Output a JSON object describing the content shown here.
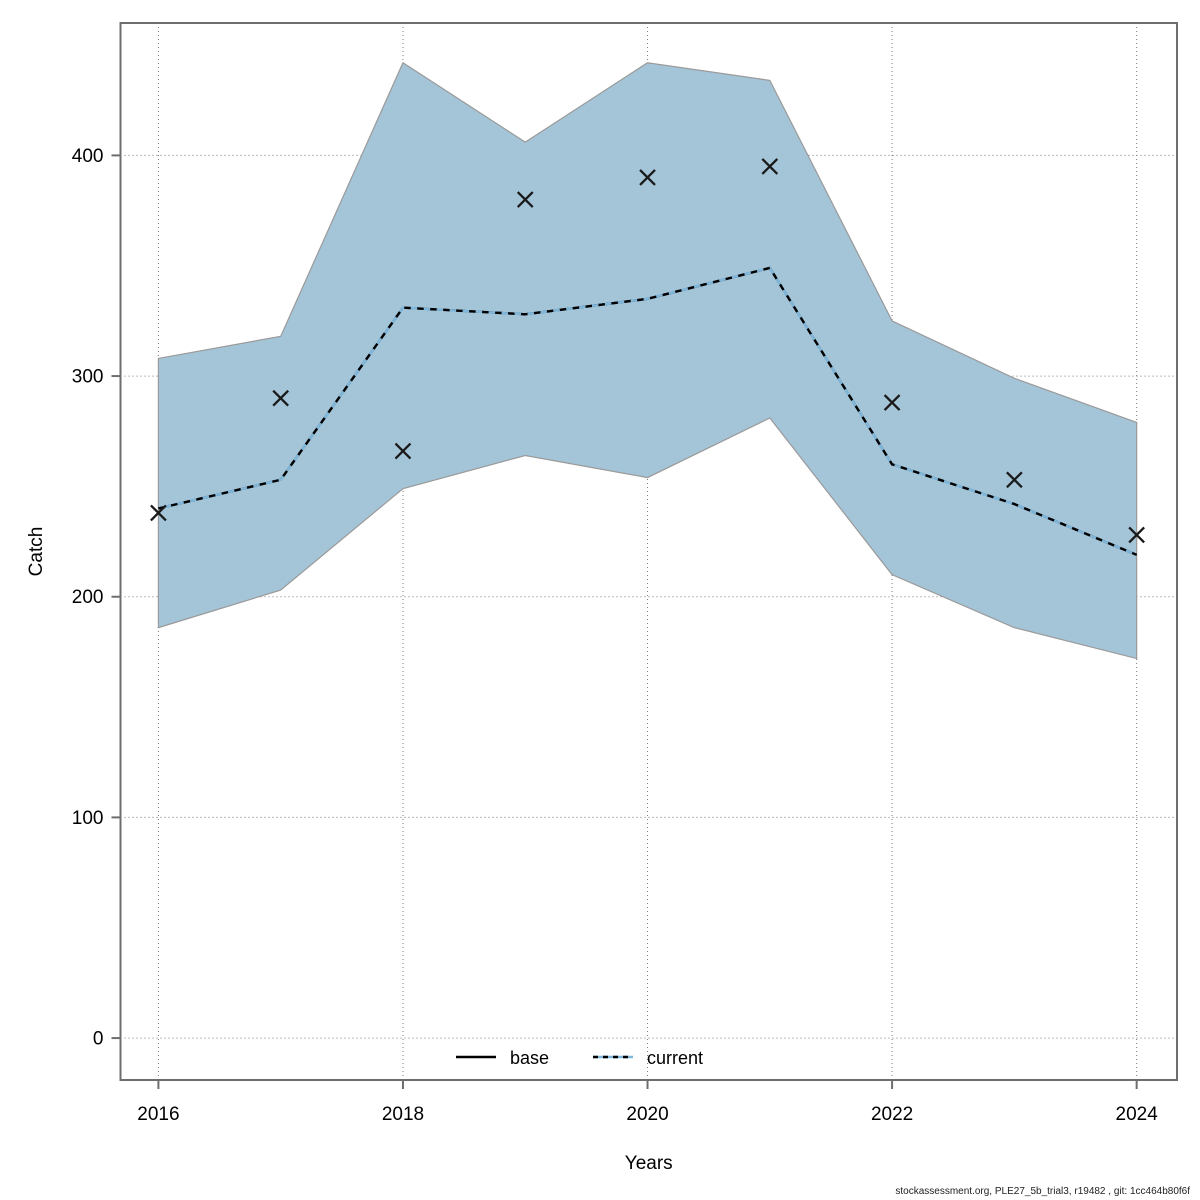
{
  "chart_data": {
    "type": "line",
    "title": "",
    "xlabel": "Years",
    "ylabel": "Catch",
    "x": [
      2016,
      2017,
      2018,
      2019,
      2020,
      2021,
      2022,
      2023,
      2024
    ],
    "xticks": [
      2016,
      2018,
      2020,
      2022,
      2024
    ],
    "yticks": [
      0,
      100,
      200,
      300,
      400
    ],
    "xlim": [
      2015.69,
      2024.33
    ],
    "ylim": [
      -19,
      460
    ],
    "grid": "dotted",
    "grid_color": "#7a7a7a",
    "axis_color": "#6e6e6e",
    "text_color": "#000000",
    "band": {
      "name": "confidence-band",
      "fill": "#a4c4d8",
      "edge": "#9a9a9a",
      "upper": [
        308,
        318,
        442,
        406,
        442,
        434,
        325,
        299,
        279
      ],
      "lower": [
        186,
        203,
        249,
        264,
        254,
        281,
        210,
        186,
        172
      ]
    },
    "series": [
      {
        "name": "base",
        "style": "solid",
        "color": "#000000",
        "values": [
          240,
          253,
          331,
          328,
          335,
          349,
          260,
          242,
          219
        ]
      },
      {
        "name": "current",
        "style": "dashed",
        "color": "#7fb8dc",
        "values": [
          240,
          253,
          331,
          328,
          335,
          349,
          260,
          242,
          219
        ]
      }
    ],
    "points": {
      "name": "observations",
      "marker": "x",
      "color": "#1a1a1a",
      "values": [
        238,
        290,
        266,
        380,
        390,
        395,
        288,
        253,
        228
      ]
    },
    "legend": {
      "position": "bottom-center",
      "entries": [
        {
          "label": "base",
          "style": "solid",
          "color": "#000000"
        },
        {
          "label": "current",
          "style": "dashed",
          "color": "#7fb8dc"
        }
      ]
    }
  },
  "footer": {
    "source_text": "stockassessment.org, PLE27_5b_trial3, r19482 , git: 1cc464b80f6f"
  }
}
